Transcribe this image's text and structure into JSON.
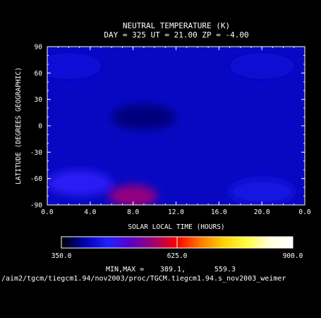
{
  "chart_data": {
    "type": "heatmap",
    "title": "NEUTRAL TEMPERATURE (K)",
    "subtitle": "DAY = 325  UT = 21.00  ZP =  -4.00",
    "xlabel": "SOLAR LOCAL TIME (HOURS)",
    "ylabel": "LATITUDE (DEGREES GEOGRAPHIC)",
    "x_ticks": [
      "0.0",
      "4.0",
      "8.0",
      "12.0",
      "16.0",
      "20.0",
      "0.0"
    ],
    "y_ticks": [
      "90",
      "60",
      "30",
      "0",
      "-30",
      "-60",
      "-90"
    ],
    "colorbar": {
      "min": 350.0,
      "max": 900.0,
      "tick_labels": [
        "350.0",
        "625.0",
        "900.0"
      ],
      "stops": [
        "#000000",
        "#0000b0",
        "#2020ff",
        "#5a00c8",
        "#a00070",
        "#ff0000",
        "#ff7800",
        "#ffd000",
        "#ffff40",
        "#ffffd8",
        "#ffffff"
      ]
    },
    "minmax": {
      "label": "MIN,MAX =",
      "min": "389.1,",
      "max": "559.3"
    },
    "field": {
      "background_K": 418,
      "features": [
        {
          "lt_hours": 8.0,
          "lat_deg": -80,
          "peak_K": 560
        },
        {
          "lt_hours": 3.0,
          "lat_deg": -65,
          "peak_K": 470
        },
        {
          "lt_hours": 20.0,
          "lat_deg": -75,
          "peak_K": 440
        },
        {
          "lt_hours": 2.0,
          "lat_deg": 68,
          "peak_K": 433
        },
        {
          "lt_hours": 20.0,
          "lat_deg": 68,
          "peak_K": 430
        },
        {
          "lt_hours": 9.0,
          "lat_deg": 10,
          "peak_K": 389
        }
      ]
    }
  },
  "footer_path": "/aim2/tgcm/tiegcm1.94/nov2003/proc/TGCM.tiegcm1.94.s_nov2003_weimer"
}
